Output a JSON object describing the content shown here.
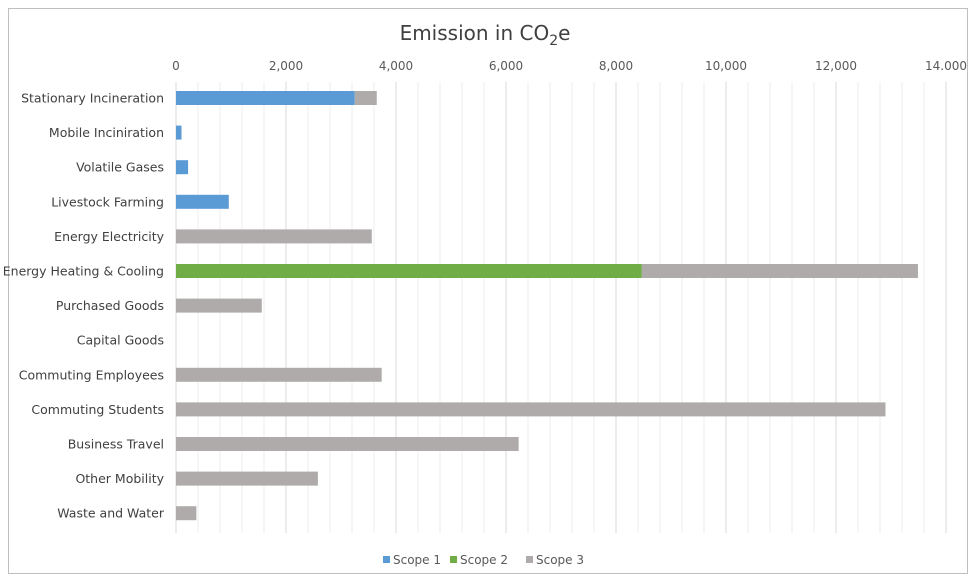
{
  "chart_data": {
    "type": "bar",
    "orientation": "horizontal",
    "stacked": true,
    "title": "Emission in CO",
    "title_subscript": "2",
    "title_suffix": "e",
    "xlim": [
      0,
      14000
    ],
    "x_ticks": [
      0,
      2000,
      4000,
      6000,
      8000,
      10000,
      12000,
      14000
    ],
    "x_tick_labels": [
      "0",
      "2,000",
      "4,000",
      "6,000",
      "8,000",
      "10,000",
      "12,000",
      "14.000"
    ],
    "x_axis_position": "top",
    "grid": true,
    "legend_position": "bottom",
    "categories": [
      "Stationary Incineration",
      "Mobile Inciniration",
      "Volatile Gases",
      "Livestock Farming",
      "Energy Electricity",
      "Energy Heating & Cooling",
      "Purchased Goods",
      "Capital Goods",
      "Commuting Employees",
      "Commuting Students",
      "Business Travel",
      "Other Mobility",
      "Waste and Water"
    ],
    "series": [
      {
        "name": "Scope 1",
        "color": "#5b9bd5",
        "values": [
          3250,
          100,
          220,
          960,
          0,
          0,
          0,
          0,
          0,
          0,
          0,
          0,
          0
        ]
      },
      {
        "name": "Scope 2",
        "color": "#70ad47",
        "values": [
          0,
          0,
          0,
          0,
          0,
          8470,
          0,
          0,
          0,
          0,
          0,
          0,
          0
        ]
      },
      {
        "name": "Scope 3",
        "color": "#afabab",
        "values": [
          400,
          0,
          0,
          0,
          3560,
          5020,
          1560,
          0,
          3740,
          12900,
          6230,
          2580,
          370
        ]
      }
    ]
  }
}
